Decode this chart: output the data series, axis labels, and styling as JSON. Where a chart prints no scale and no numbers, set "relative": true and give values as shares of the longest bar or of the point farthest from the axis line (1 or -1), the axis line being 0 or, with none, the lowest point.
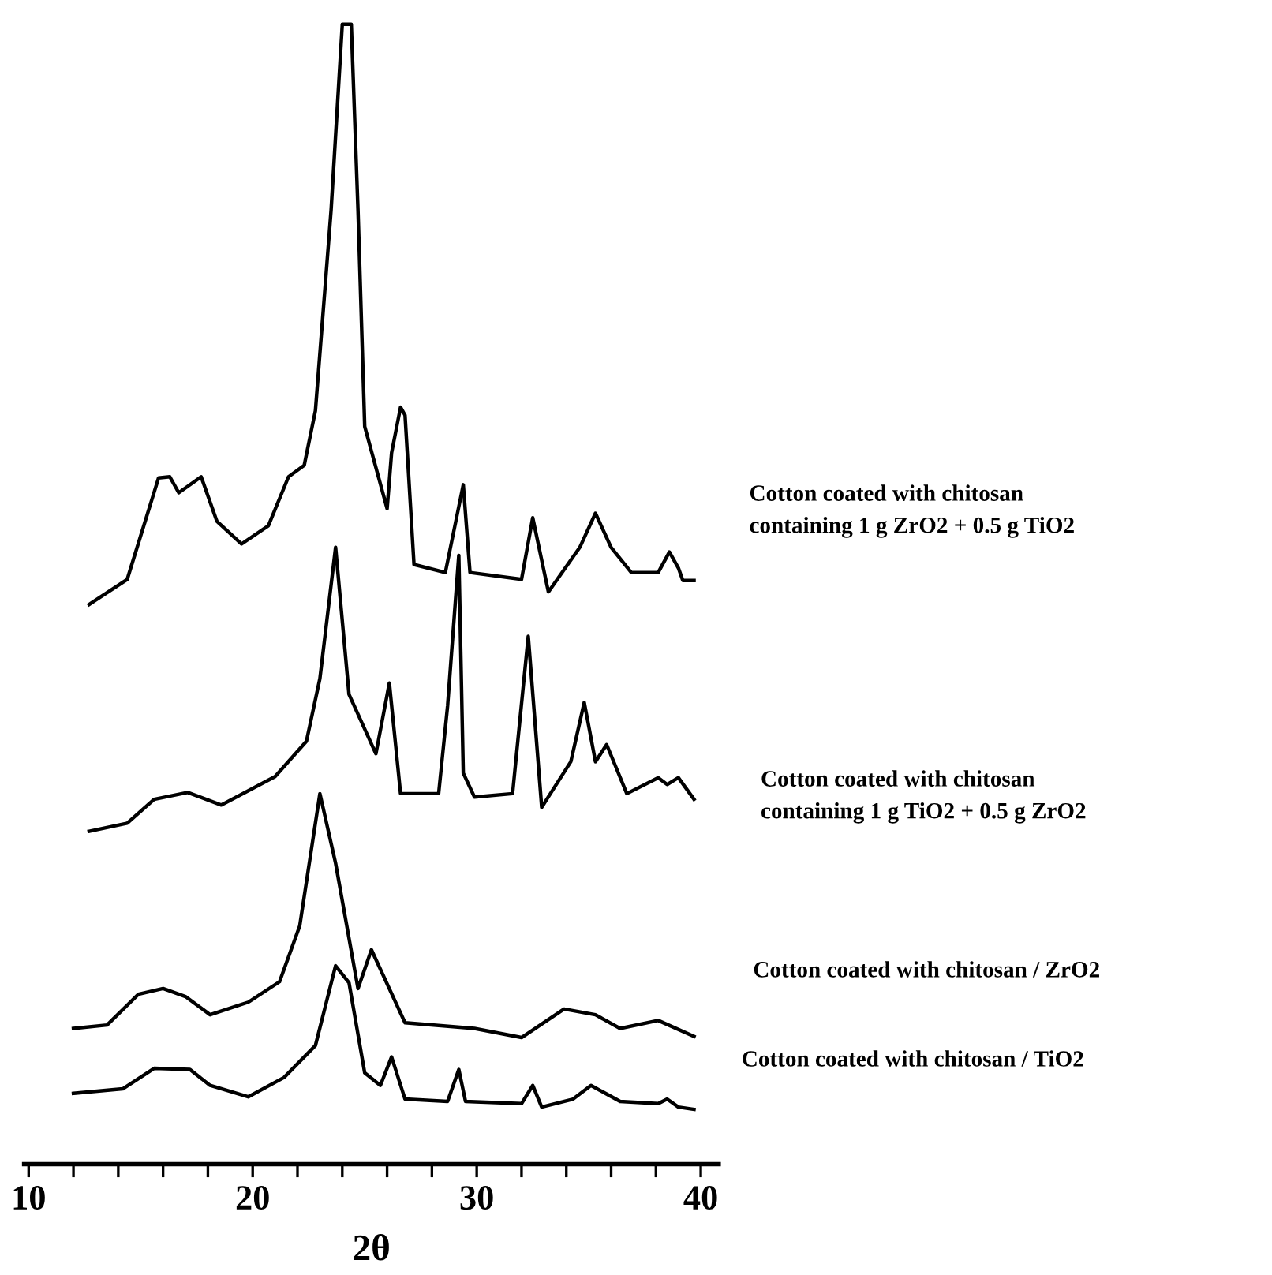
{
  "chart_data": {
    "type": "line",
    "relative": true,
    "xlabel": "2θ",
    "xlim": [
      9.8,
      40.8
    ],
    "xticks": [
      10,
      {
        "value": 12,
        "label": null
      },
      {
        "value": 14,
        "label": null
      },
      {
        "value": 16,
        "label": null
      },
      {
        "value": 18,
        "label": null
      },
      20,
      {
        "value": 22,
        "label": null
      },
      {
        "value": 24,
        "label": null
      },
      {
        "value": 26,
        "label": null
      },
      {
        "value": 28,
        "label": null
      },
      30,
      {
        "value": 32,
        "label": null
      },
      {
        "value": 34,
        "label": null
      },
      {
        "value": 36,
        "label": null
      },
      {
        "value": 38,
        "label": null
      },
      40
    ],
    "tick_labels": "x",
    "grid": false,
    "legend": false,
    "marker": "none",
    "line_style": "solid",
    "series": [
      {
        "name": "Cotton coated with chitosan\ncontaining 1 g ZrO2 + 0.5 g TiO2",
        "color": "#000000",
        "x": [
          12.7,
          14.4,
          15.8,
          16.3,
          16.7,
          17.7,
          18.4,
          19.5,
          20.7,
          21.6,
          22.3,
          22.8,
          23.5,
          24.0,
          24.4,
          24.7,
          25.0,
          26.0,
          26.2,
          26.6,
          26.8,
          27.2,
          28.6,
          29.4,
          29.7,
          32.0,
          32.5,
          33.2,
          34.6,
          35.3,
          36.0,
          36.9,
          38.1,
          38.6,
          39.0,
          39.2,
          39.7
        ],
        "values": [
          0.491,
          0.513,
          0.602,
          0.603,
          0.589,
          0.603,
          0.564,
          0.544,
          0.56,
          0.603,
          0.613,
          0.661,
          0.837,
          1.0,
          1.0,
          0.837,
          0.647,
          0.575,
          0.624,
          0.664,
          0.657,
          0.526,
          0.519,
          0.596,
          0.519,
          0.513,
          0.567,
          0.502,
          0.541,
          0.571,
          0.541,
          0.519,
          0.519,
          0.537,
          0.523,
          0.512,
          0.512
        ]
      },
      {
        "name": "Cotton coated with chitosan\ncontaining 1 g TiO2 + 0.5 g ZrO2",
        "color": "#000000",
        "x": [
          12.7,
          14.4,
          15.6,
          17.1,
          18.6,
          21.0,
          22.4,
          23.0,
          23.7,
          24.3,
          25.5,
          26.1,
          26.6,
          28.3,
          28.7,
          29.2,
          29.4,
          29.9,
          31.6,
          32.3,
          32.9,
          34.2,
          34.8,
          35.3,
          35.8,
          36.7,
          38.1,
          38.5,
          39.0,
          39.7
        ],
        "values": [
          0.292,
          0.299,
          0.32,
          0.326,
          0.315,
          0.34,
          0.371,
          0.426,
          0.541,
          0.412,
          0.36,
          0.422,
          0.325,
          0.325,
          0.402,
          0.534,
          0.343,
          0.322,
          0.325,
          0.463,
          0.313,
          0.353,
          0.405,
          0.353,
          0.368,
          0.325,
          0.339,
          0.333,
          0.339,
          0.32
        ]
      },
      {
        "name": "Cotton coated with chitosan / ZrO2",
        "color": "#000000",
        "x": [
          12.0,
          13.5,
          14.9,
          16.0,
          17.0,
          18.1,
          19.8,
          21.2,
          22.1,
          23.0,
          23.7,
          24.7,
          25.3,
          26.8,
          29.9,
          32.0,
          33.9,
          35.3,
          36.4,
          38.1,
          39.7
        ],
        "values": [
          0.119,
          0.122,
          0.149,
          0.154,
          0.147,
          0.131,
          0.142,
          0.16,
          0.209,
          0.325,
          0.264,
          0.154,
          0.188,
          0.124,
          0.119,
          0.111,
          0.136,
          0.131,
          0.119,
          0.126,
          0.112
        ]
      },
      {
        "name": "Cotton coated with chitosan / TiO2",
        "color": "#000000",
        "x": [
          12.0,
          14.2,
          15.6,
          17.2,
          18.1,
          19.8,
          21.4,
          22.8,
          23.7,
          24.3,
          25.0,
          25.7,
          26.2,
          26.8,
          28.7,
          29.2,
          29.5,
          32.0,
          32.5,
          32.9,
          34.3,
          35.1,
          36.4,
          38.1,
          38.5,
          39.0,
          39.7
        ],
        "values": [
          0.062,
          0.066,
          0.084,
          0.083,
          0.069,
          0.059,
          0.076,
          0.104,
          0.174,
          0.159,
          0.08,
          0.069,
          0.094,
          0.057,
          0.055,
          0.083,
          0.055,
          0.053,
          0.069,
          0.05,
          0.057,
          0.069,
          0.055,
          0.053,
          0.057,
          0.05,
          0.048
        ]
      }
    ]
  }
}
